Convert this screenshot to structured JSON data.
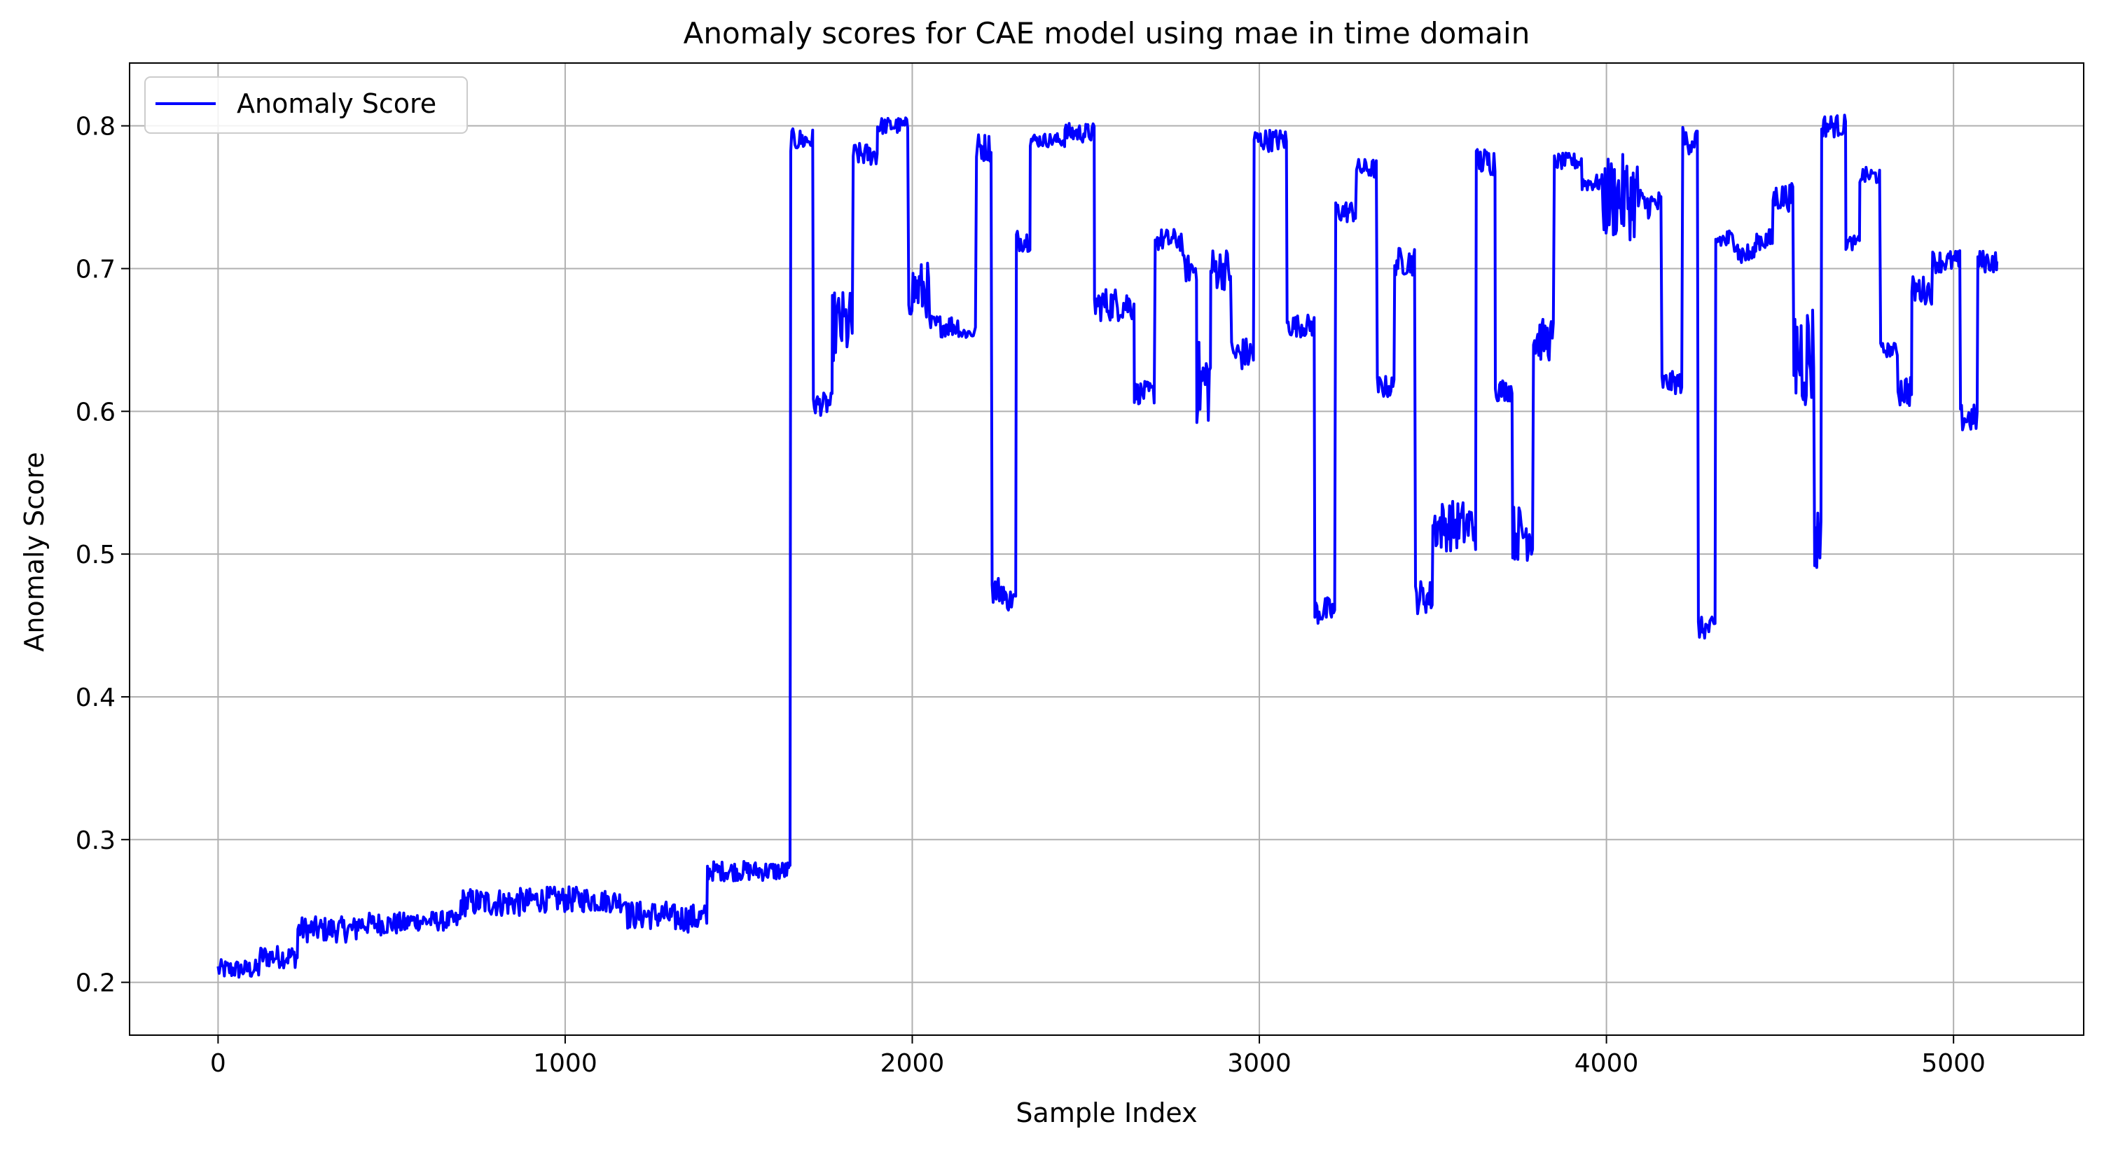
{
  "chart_data": {
    "type": "line",
    "title": "Anomaly scores for CAE model using mae in time domain",
    "xlabel": "Sample Index",
    "ylabel": "Anomaly Score",
    "xlim": [
      -255,
      5375
    ],
    "ylim": [
      0.163,
      0.844
    ],
    "xticks": [
      0,
      1000,
      2000,
      3000,
      4000,
      5000
    ],
    "xtick_labels": [
      "0",
      "1000",
      "2000",
      "3000",
      "4000",
      "5000"
    ],
    "yticks": [
      0.2,
      0.3,
      0.4,
      0.5,
      0.6,
      0.7,
      0.8
    ],
    "ytick_labels": [
      "0.2",
      "0.3",
      "0.4",
      "0.5",
      "0.6",
      "0.7",
      "0.8"
    ],
    "grid": true,
    "legend": {
      "position": "top-left",
      "entries": [
        "Anomaly Score"
      ]
    },
    "series": [
      {
        "name": "Anomaly Score",
        "color": "#0000ff",
        "segments": [
          [
            0,
            0.209,
            0.007
          ],
          [
            120,
            0.218,
            0.008
          ],
          [
            230,
            0.237,
            0.009
          ],
          [
            400,
            0.241,
            0.008
          ],
          [
            550,
            0.243,
            0.007
          ],
          [
            700,
            0.256,
            0.01
          ],
          [
            900,
            0.258,
            0.009
          ],
          [
            1100,
            0.257,
            0.008
          ],
          [
            1180,
            0.247,
            0.01
          ],
          [
            1300,
            0.245,
            0.01
          ],
          [
            1410,
            0.278,
            0.007
          ],
          [
            1645,
            0.278,
            0.008
          ],
          [
            1650,
            0.79,
            0.008
          ],
          [
            1715,
            0.605,
            0.008
          ],
          [
            1770,
            0.66,
            0.025
          ],
          [
            1830,
            0.78,
            0.008
          ],
          [
            1900,
            0.8,
            0.006
          ],
          [
            1990,
            0.685,
            0.02
          ],
          [
            2050,
            0.66,
            0.008
          ],
          [
            2140,
            0.655,
            0.005
          ],
          [
            2185,
            0.785,
            0.01
          ],
          [
            2230,
            0.475,
            0.01
          ],
          [
            2265,
            0.468,
            0.008
          ],
          [
            2300,
            0.72,
            0.008
          ],
          [
            2340,
            0.79,
            0.005
          ],
          [
            2440,
            0.795,
            0.007
          ],
          [
            2525,
            0.675,
            0.012
          ],
          [
            2640,
            0.613,
            0.008
          ],
          [
            2700,
            0.72,
            0.008
          ],
          [
            2780,
            0.7,
            0.01
          ],
          [
            2820,
            0.62,
            0.03
          ],
          [
            2860,
            0.7,
            0.015
          ],
          [
            2920,
            0.64,
            0.012
          ],
          [
            2985,
            0.79,
            0.008
          ],
          [
            3080,
            0.66,
            0.008
          ],
          [
            3160,
            0.46,
            0.01
          ],
          [
            3220,
            0.74,
            0.008
          ],
          [
            3280,
            0.77,
            0.007
          ],
          [
            3340,
            0.617,
            0.008
          ],
          [
            3390,
            0.705,
            0.01
          ],
          [
            3450,
            0.47,
            0.012
          ],
          [
            3500,
            0.52,
            0.018
          ],
          [
            3625,
            0.775,
            0.01
          ],
          [
            3680,
            0.615,
            0.008
          ],
          [
            3730,
            0.515,
            0.02
          ],
          [
            3790,
            0.65,
            0.015
          ],
          [
            3850,
            0.775,
            0.006
          ],
          [
            3930,
            0.76,
            0.006
          ],
          [
            3990,
            0.75,
            0.03
          ],
          [
            4100,
            0.745,
            0.01
          ],
          [
            4160,
            0.62,
            0.008
          ],
          [
            4220,
            0.79,
            0.01
          ],
          [
            4265,
            0.448,
            0.008
          ],
          [
            4315,
            0.72,
            0.008
          ],
          [
            4380,
            0.71,
            0.008
          ],
          [
            4430,
            0.72,
            0.008
          ],
          [
            4480,
            0.75,
            0.01
          ],
          [
            4540,
            0.64,
            0.04
          ],
          [
            4600,
            0.51,
            0.025
          ],
          [
            4620,
            0.8,
            0.008
          ],
          [
            4690,
            0.718,
            0.005
          ],
          [
            4730,
            0.765,
            0.006
          ],
          [
            4790,
            0.643,
            0.005
          ],
          [
            4840,
            0.615,
            0.012
          ],
          [
            4880,
            0.685,
            0.01
          ],
          [
            4940,
            0.705,
            0.008
          ],
          [
            5020,
            0.595,
            0.01
          ],
          [
            5070,
            0.705,
            0.008
          ],
          [
            5125,
            0.705,
            0.008
          ]
        ]
      }
    ]
  }
}
